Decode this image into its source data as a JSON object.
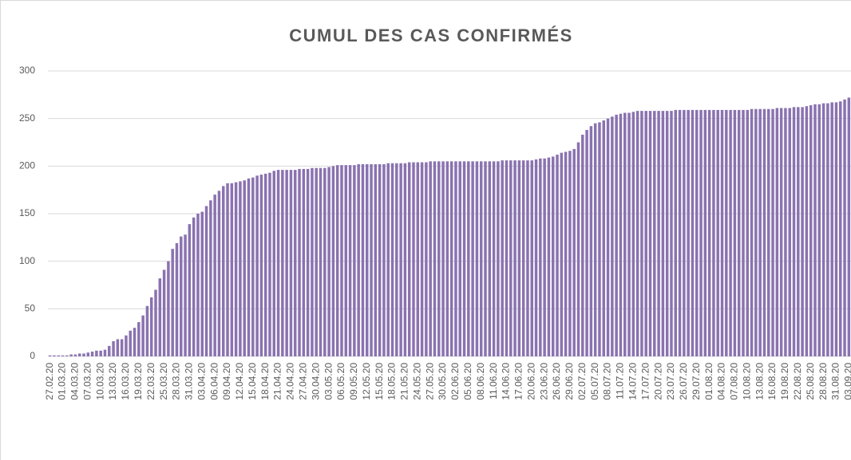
{
  "chart_data": {
    "type": "bar",
    "title": "CUMUL DES CAS CONFIRMÉS",
    "categories": [
      "27.02.20",
      null,
      null,
      "01.03.20",
      null,
      null,
      "04.03.20",
      null,
      null,
      "07.03.20",
      null,
      null,
      "10.03.20",
      null,
      null,
      "13.03.20",
      null,
      null,
      "16.03.20",
      null,
      null,
      "19.03.20",
      null,
      null,
      "22.03.20",
      null,
      null,
      "25.03.20",
      null,
      null,
      "28.03.20",
      null,
      null,
      "31.03.20",
      null,
      null,
      "03.04.20",
      null,
      null,
      "06.04.20",
      null,
      null,
      "09.04.20",
      null,
      null,
      "12.04.20",
      null,
      null,
      "15.04.20",
      null,
      null,
      "18.04.20",
      null,
      null,
      "21.04.20",
      null,
      null,
      "24.04.20",
      null,
      null,
      "27.04.20",
      null,
      null,
      "30.04.20",
      null,
      null,
      "03.05.20",
      null,
      null,
      "06.05.20",
      null,
      null,
      "09.05.20",
      null,
      null,
      "12.05.20",
      null,
      null,
      "15.05.20",
      null,
      null,
      "18.05.20",
      null,
      null,
      "21.05.20",
      null,
      null,
      "24.05.20",
      null,
      null,
      "27.05.20",
      null,
      null,
      "30.05.20",
      null,
      null,
      "02.06.20",
      null,
      null,
      "05.06.20",
      null,
      null,
      "08.06.20",
      null,
      null,
      "11.06.20",
      null,
      null,
      "14.06.20",
      null,
      null,
      "17.06.20",
      null,
      null,
      "20.06.20",
      null,
      null,
      "23.06.20",
      null,
      null,
      "26.06.20",
      null,
      null,
      "29.06.20",
      null,
      null,
      "02.07.20",
      null,
      null,
      "05.07.20",
      null,
      null,
      "08.07.20",
      null,
      null,
      "11.07.20",
      null,
      null,
      "14.07.20",
      null,
      null,
      "17.07.20",
      null,
      null,
      "20.07.20",
      null,
      null,
      "23.07.20",
      null,
      null,
      "26.07.20",
      null,
      null,
      "29.07.20",
      null,
      null,
      "01.08.20",
      null,
      null,
      "04.08.20",
      null,
      null,
      "07.08.20",
      null,
      null,
      "10.08.20",
      null,
      null,
      "13.08.20",
      null,
      null,
      "16.08.20",
      null,
      null,
      "19.08.20",
      null,
      null,
      "22.08.20",
      null,
      null,
      "25.08.20",
      null,
      null,
      "28.08.20",
      null,
      null,
      "31.08.20",
      null,
      null,
      "03.09.20"
    ],
    "values": [
      1,
      1,
      1,
      1,
      1,
      2,
      2,
      3,
      3,
      4,
      5,
      6,
      6,
      7,
      11,
      16,
      18,
      18,
      22,
      27,
      30,
      36,
      43,
      53,
      62,
      70,
      82,
      91,
      100,
      113,
      119,
      126,
      128,
      139,
      146,
      150,
      152,
      158,
      164,
      170,
      174,
      179,
      182,
      182,
      183,
      184,
      185,
      187,
      188,
      190,
      191,
      192,
      193,
      195,
      196,
      196,
      196,
      196,
      196,
      197,
      197,
      197,
      198,
      198,
      198,
      198,
      199,
      200,
      201,
      201,
      201,
      201,
      201,
      202,
      202,
      202,
      202,
      202,
      202,
      202,
      203,
      203,
      203,
      203,
      203,
      204,
      204,
      204,
      204,
      204,
      205,
      205,
      205,
      205,
      205,
      205,
      205,
      205,
      205,
      205,
      205,
      205,
      205,
      205,
      205,
      205,
      205,
      206,
      206,
      206,
      206,
      206,
      206,
      206,
      206,
      207,
      208,
      208,
      209,
      210,
      212,
      214,
      215,
      216,
      218,
      225,
      233,
      238,
      242,
      245,
      246,
      248,
      250,
      252,
      254,
      255,
      256,
      256,
      257,
      258,
      258,
      258,
      258,
      258,
      258,
      258,
      258,
      258,
      259,
      259,
      259,
      259,
      259,
      259,
      259,
      259,
      259,
      259,
      259,
      259,
      259,
      259,
      259,
      259,
      259,
      259,
      260,
      260,
      260,
      260,
      260,
      260,
      261,
      261,
      261,
      261,
      262,
      262,
      262,
      263,
      264,
      265,
      265,
      266,
      266,
      267,
      267,
      268,
      270,
      272
    ],
    "color": "#8a72b0",
    "ylim": [
      0,
      300
    ],
    "yticks": [
      0,
      50,
      100,
      150,
      200,
      250,
      300
    ],
    "grid": true
  }
}
